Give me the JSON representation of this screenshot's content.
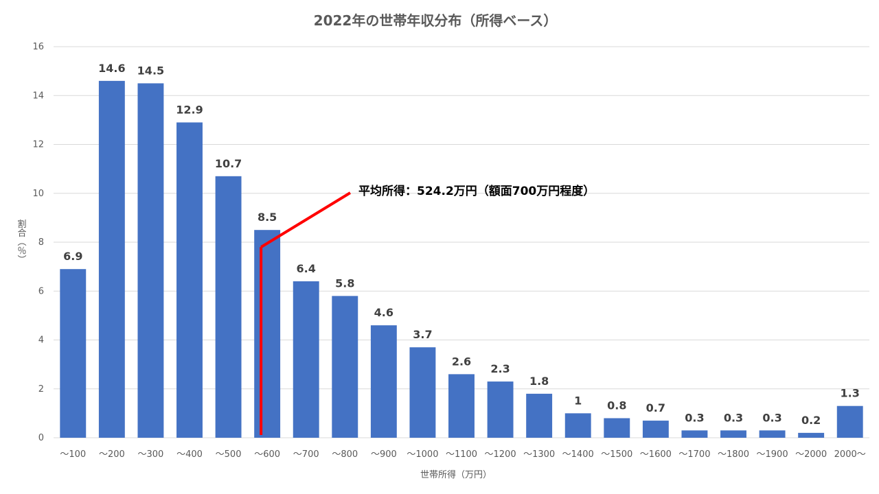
{
  "chart_data": {
    "type": "bar",
    "title": "2022年の世帯年収分布（所得ベース）",
    "xlabel": "世帯所得（万円）",
    "ylabel": "割合（％）",
    "ylim": [
      0,
      16
    ],
    "yticks": [
      0,
      2,
      4,
      6,
      8,
      10,
      12,
      14,
      16
    ],
    "grid": true,
    "categories": [
      "～100",
      "～200",
      "～300",
      "～400",
      "～500",
      "～600",
      "～700",
      "～800",
      "～900",
      "～1000",
      "～1100",
      "～1200",
      "～1300",
      "～1400",
      "～1500",
      "～1600",
      "～1700",
      "～1800",
      "～1900",
      "～2000",
      "2000～"
    ],
    "values": [
      6.9,
      14.6,
      14.5,
      12.9,
      10.7,
      8.5,
      6.4,
      5.8,
      4.6,
      3.7,
      2.6,
      2.3,
      1.8,
      1,
      0.8,
      0.7,
      0.3,
      0.3,
      0.3,
      0.2,
      1.3
    ],
    "bar_color": "#4472C4",
    "annotation": {
      "text": "平均所得：524.2万円（額面700万円程度）",
      "color": "#FF0000",
      "category_index": 5,
      "line_top_value": 7.8
    }
  }
}
